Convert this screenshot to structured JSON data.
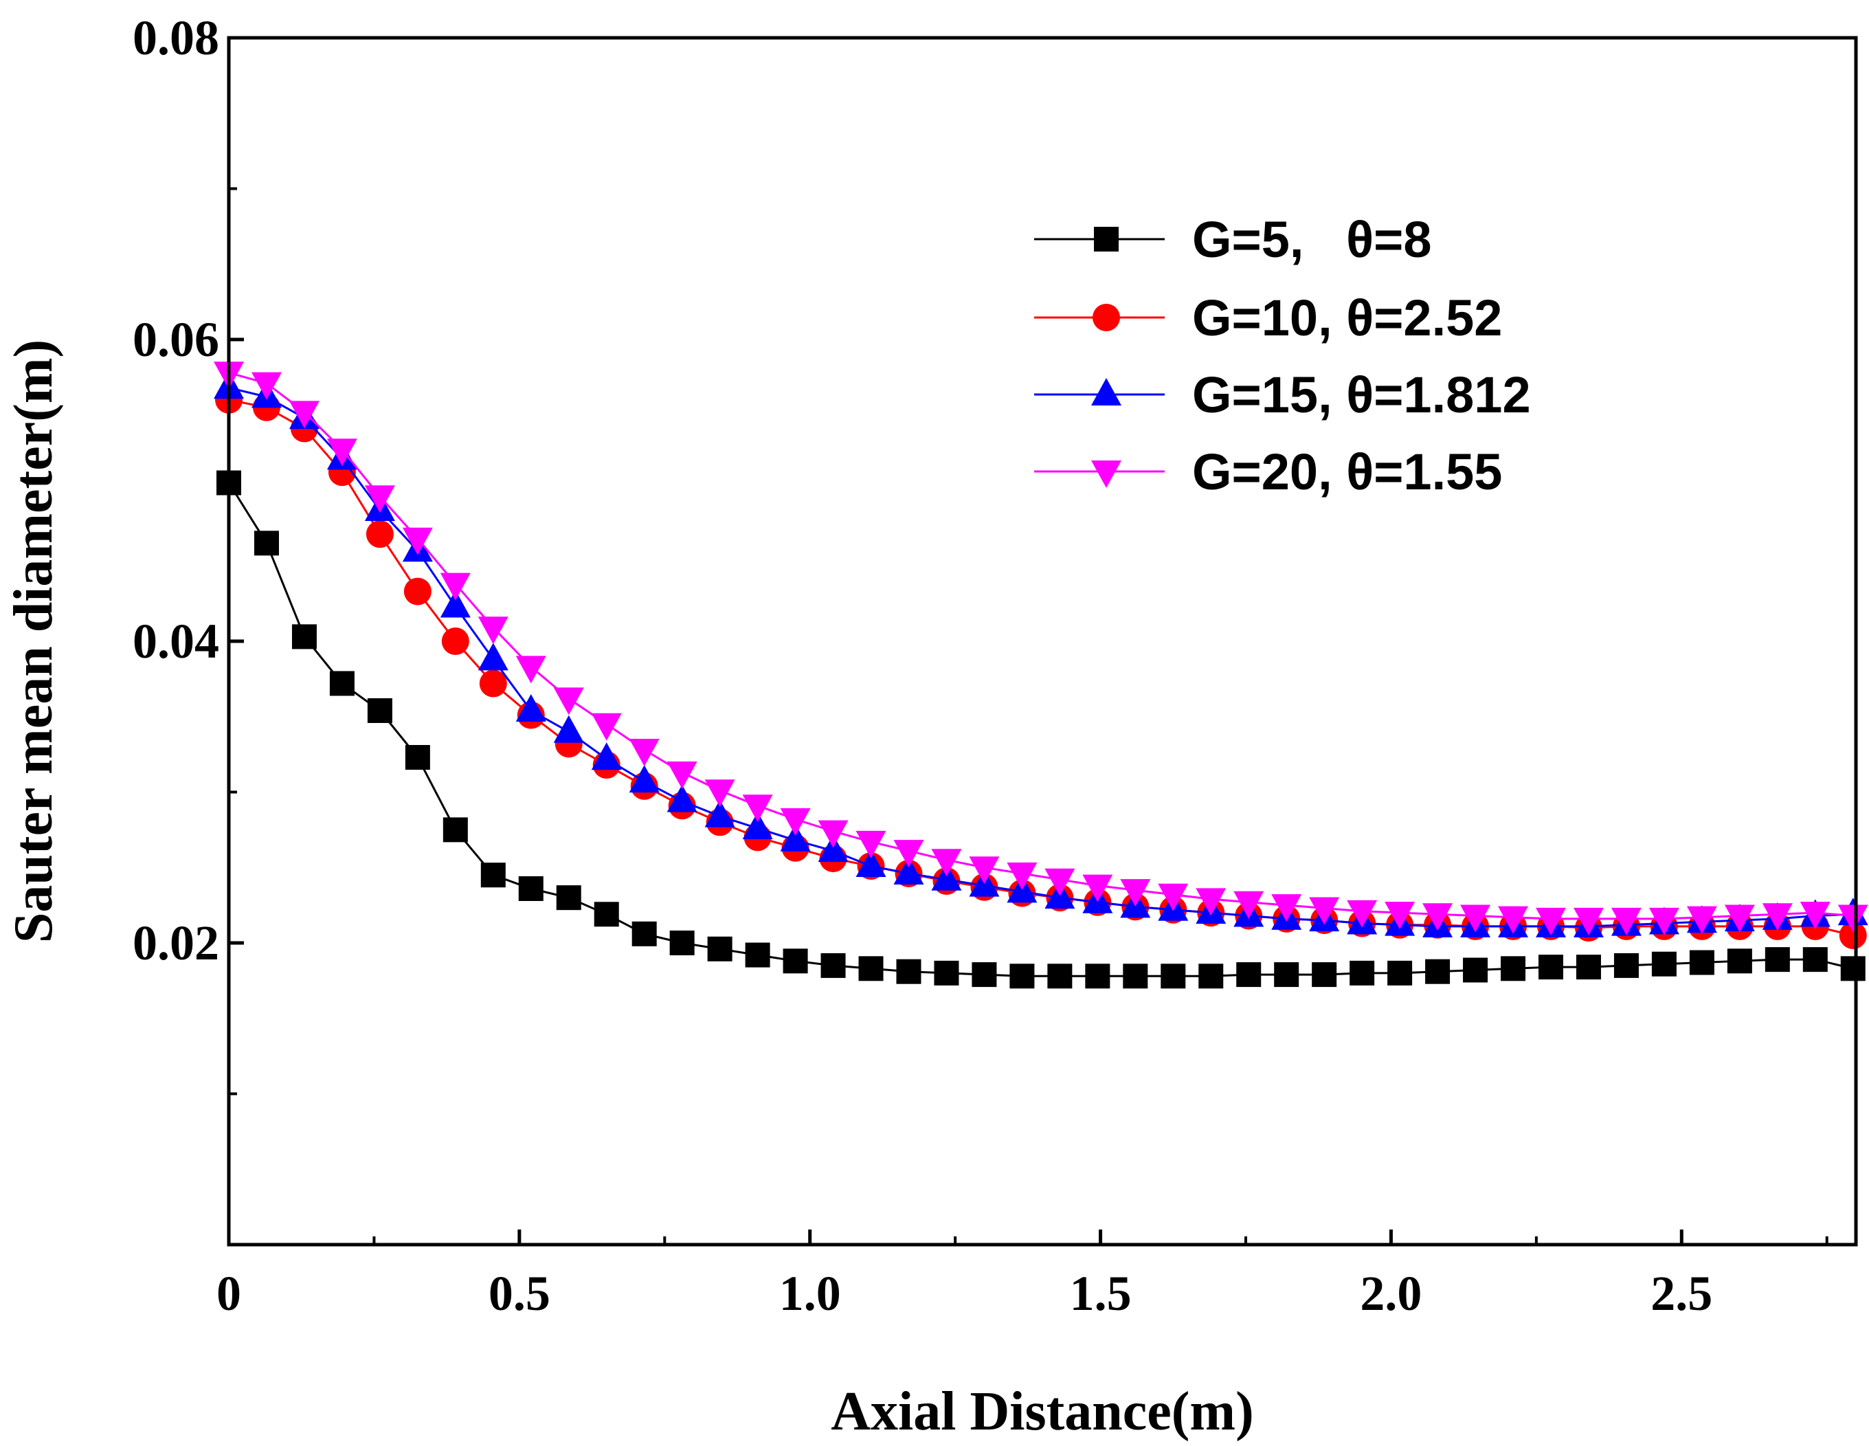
{
  "chart_data": {
    "type": "line",
    "title": "",
    "xlabel": "Axial Distance(m)",
    "ylabel": "Sauter mean diameter(m)",
    "xlim": [
      0,
      2.8
    ],
    "ylim": [
      0,
      0.08
    ],
    "xticks": [
      0,
      0.5,
      1.0,
      1.5,
      2.0,
      2.5
    ],
    "xtick_labels": [
      "0",
      "0.5",
      "1.0",
      "1.5",
      "2.0",
      "2.5"
    ],
    "yticks": [
      0.02,
      0.04,
      0.06,
      0.08
    ],
    "ytick_labels": [
      "0.02",
      "0.04",
      "0.06",
      "0.08"
    ],
    "grid": false,
    "legend_position": "top-right",
    "series": [
      {
        "name": "G=5,   θ=8",
        "color": "#000000",
        "marker": "square",
        "x": [
          0,
          0.065,
          0.13,
          0.195,
          0.26,
          0.325,
          0.39,
          0.455,
          0.52,
          0.585,
          0.65,
          0.715,
          0.78,
          0.845,
          0.91,
          0.975,
          1.04,
          1.105,
          1.17,
          1.235,
          1.3,
          1.365,
          1.43,
          1.495,
          1.56,
          1.625,
          1.69,
          1.755,
          1.82,
          1.885,
          1.95,
          2.015,
          2.08,
          2.145,
          2.21,
          2.275,
          2.34,
          2.405,
          2.47,
          2.535,
          2.6,
          2.665,
          2.73,
          2.795
        ],
        "y": [
          0.0505,
          0.0465,
          0.0403,
          0.0372,
          0.0354,
          0.0323,
          0.0275,
          0.0245,
          0.0236,
          0.023,
          0.0219,
          0.0206,
          0.02,
          0.0196,
          0.0192,
          0.0188,
          0.0185,
          0.0183,
          0.0181,
          0.018,
          0.0179,
          0.0178,
          0.0178,
          0.0178,
          0.0178,
          0.0178,
          0.0178,
          0.0179,
          0.0179,
          0.0179,
          0.018,
          0.018,
          0.0181,
          0.0182,
          0.0183,
          0.0184,
          0.0184,
          0.0185,
          0.0186,
          0.0187,
          0.0188,
          0.0189,
          0.0189,
          0.0183
        ]
      },
      {
        "name": "G=10, θ=2.52",
        "color": "#ff0000",
        "marker": "circle",
        "x": [
          0,
          0.065,
          0.13,
          0.195,
          0.26,
          0.325,
          0.39,
          0.455,
          0.52,
          0.585,
          0.65,
          0.715,
          0.78,
          0.845,
          0.91,
          0.975,
          1.04,
          1.105,
          1.17,
          1.235,
          1.3,
          1.365,
          1.43,
          1.495,
          1.56,
          1.625,
          1.69,
          1.755,
          1.82,
          1.885,
          1.95,
          2.015,
          2.08,
          2.145,
          2.21,
          2.275,
          2.34,
          2.405,
          2.47,
          2.535,
          2.6,
          2.665,
          2.73,
          2.795
        ],
        "y": [
          0.056,
          0.0555,
          0.0541,
          0.0512,
          0.0471,
          0.0433,
          0.04,
          0.0372,
          0.0351,
          0.0332,
          0.0318,
          0.0304,
          0.0291,
          0.028,
          0.027,
          0.0263,
          0.0256,
          0.0251,
          0.0246,
          0.0241,
          0.0237,
          0.0233,
          0.023,
          0.0227,
          0.0224,
          0.0222,
          0.022,
          0.0218,
          0.0216,
          0.0215,
          0.0213,
          0.0212,
          0.0212,
          0.0211,
          0.0211,
          0.0211,
          0.021,
          0.0211,
          0.0211,
          0.0211,
          0.0211,
          0.0211,
          0.0211,
          0.0205
        ]
      },
      {
        "name": "G=15, θ=1.812",
        "color": "#0000ff",
        "marker": "triangle-up",
        "x": [
          0,
          0.065,
          0.13,
          0.195,
          0.26,
          0.325,
          0.39,
          0.455,
          0.52,
          0.585,
          0.65,
          0.715,
          0.78,
          0.845,
          0.91,
          0.975,
          1.04,
          1.105,
          1.17,
          1.235,
          1.3,
          1.365,
          1.43,
          1.495,
          1.56,
          1.625,
          1.69,
          1.755,
          1.82,
          1.885,
          1.95,
          2.015,
          2.08,
          2.145,
          2.21,
          2.275,
          2.34,
          2.405,
          2.47,
          2.535,
          2.6,
          2.665,
          2.73,
          2.795
        ],
        "y": [
          0.0568,
          0.0562,
          0.0548,
          0.0521,
          0.0487,
          0.046,
          0.0423,
          0.0388,
          0.0354,
          0.034,
          0.0322,
          0.0307,
          0.0294,
          0.0284,
          0.0276,
          0.0268,
          0.0261,
          0.0251,
          0.0246,
          0.0242,
          0.0238,
          0.0234,
          0.023,
          0.0227,
          0.0224,
          0.0222,
          0.022,
          0.0218,
          0.0216,
          0.0215,
          0.0213,
          0.0212,
          0.0211,
          0.0211,
          0.0211,
          0.0211,
          0.0211,
          0.0212,
          0.0213,
          0.0214,
          0.0215,
          0.0216,
          0.0218,
          0.0219
        ]
      },
      {
        "name": "G=20, θ=1.55",
        "color": "#ff00ff",
        "marker": "triangle-down",
        "x": [
          0,
          0.065,
          0.13,
          0.195,
          0.26,
          0.325,
          0.39,
          0.455,
          0.52,
          0.585,
          0.65,
          0.715,
          0.78,
          0.845,
          0.91,
          0.975,
          1.04,
          1.105,
          1.17,
          1.235,
          1.3,
          1.365,
          1.43,
          1.495,
          1.56,
          1.625,
          1.69,
          1.755,
          1.82,
          1.885,
          1.95,
          2.015,
          2.08,
          2.145,
          2.21,
          2.275,
          2.34,
          2.405,
          2.47,
          2.535,
          2.6,
          2.665,
          2.73,
          2.795
        ],
        "y": [
          0.0578,
          0.0571,
          0.0552,
          0.0527,
          0.0496,
          0.0468,
          0.0438,
          0.0409,
          0.0383,
          0.0362,
          0.0345,
          0.0328,
          0.0313,
          0.0301,
          0.0291,
          0.0282,
          0.0274,
          0.0267,
          0.0261,
          0.0255,
          0.025,
          0.0246,
          0.0242,
          0.0238,
          0.0235,
          0.0232,
          0.0229,
          0.0227,
          0.0225,
          0.0223,
          0.0221,
          0.022,
          0.0219,
          0.0218,
          0.0217,
          0.0216,
          0.0216,
          0.0216,
          0.0216,
          0.0217,
          0.0218,
          0.0219,
          0.022,
          0.0218
        ]
      }
    ]
  }
}
